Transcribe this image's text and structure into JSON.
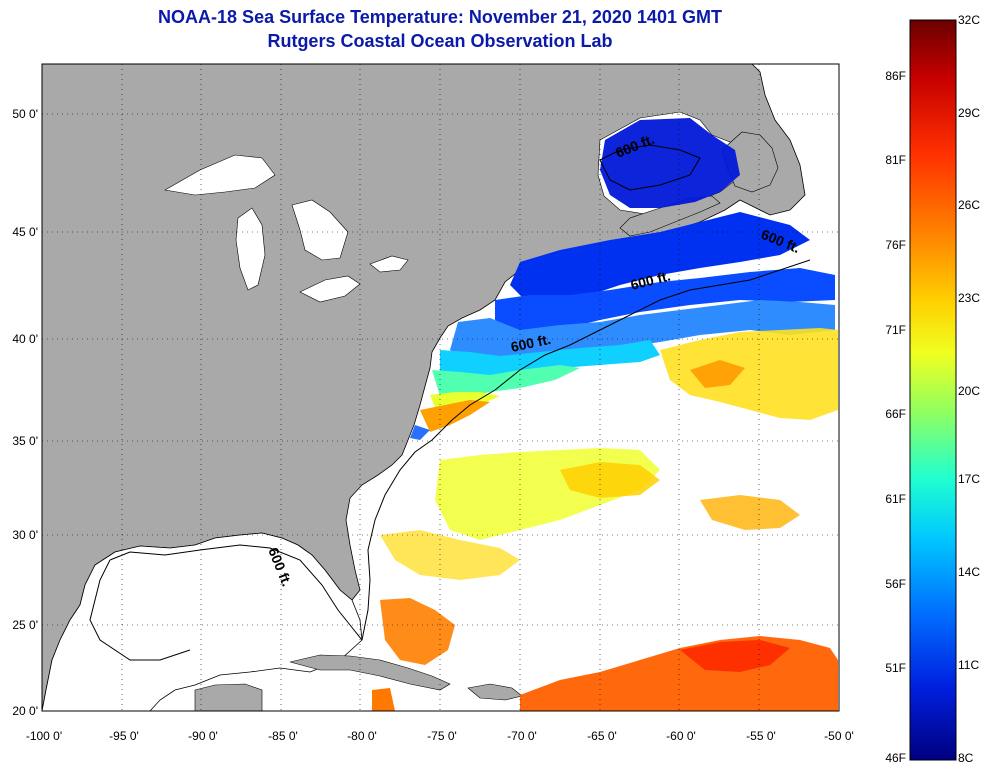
{
  "title": "NOAA-18 Sea Surface Temperature:  November 21, 2020 1401 GMT",
  "subtitle": "Rutgers Coastal Ocean Observation Lab",
  "lat_ticks": [
    "50 0'",
    "45 0'",
    "40 0'",
    "35 0'",
    "30 0'",
    "25 0'",
    "20 0'"
  ],
  "lon_ticks": [
    "-100 0'",
    "-95 0'",
    "-90 0'",
    "-85 0'",
    "-80 0'",
    "-75 0'",
    "-70 0'",
    "-65 0'",
    "-60 0'",
    "-55 0'",
    "-50 0'"
  ],
  "contour_label": "600 ft.",
  "colorbar": {
    "celsius": [
      "32C",
      "29C",
      "26C",
      "23C",
      "20C",
      "17C",
      "14C",
      "11C",
      "8C"
    ],
    "fahrenheit": [
      "86F",
      "81F",
      "76F",
      "71F",
      "66F",
      "61F",
      "56F",
      "51F",
      "46F"
    ],
    "colors": [
      "#7a0000",
      "#d00000",
      "#ff2a00",
      "#ff7a00",
      "#ffc000",
      "#f4ff1a",
      "#a6ff5a",
      "#40ffc0",
      "#00d8ff",
      "#0090ff",
      "#1040ff",
      "#0010c8",
      "#000080"
    ]
  }
}
